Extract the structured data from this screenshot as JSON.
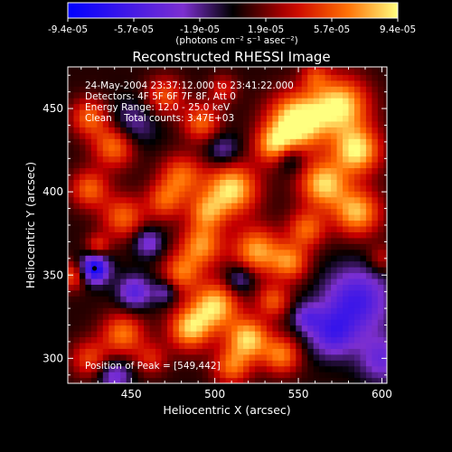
{
  "chart_data": {
    "type": "heatmap",
    "title": "Reconstructed RHESSI Image",
    "xlabel": "Heliocentric X (arcsec)",
    "ylabel": "Heliocentric Y (arcsec)",
    "xlim": [
      412,
      603
    ],
    "ylim": [
      285,
      475
    ],
    "xticks": [
      450,
      500,
      550,
      600
    ],
    "yticks": [
      300,
      350,
      400,
      450
    ],
    "annotations": [
      "24-May-2004 23:37:12.000 to 23:41:22.000",
      "Detectors: 4F 5F 6F 7F 8F, Att 0",
      "Energy Range: 12.0 - 25.0 keV",
      "Clean    Total counts: 3.47E+03"
    ],
    "peak_text": "Position of Peak = [549,442]",
    "peak": [
      549,
      442
    ],
    "min_marker": [
      428,
      354
    ],
    "colorbar": {
      "min": -9.4e-05,
      "max": 9.4e-05,
      "tick_labels": [
        "-9.4e-05",
        "-5.7e-05",
        "-1.9e-05",
        "1.9e-05",
        "5.7e-05",
        "9.4e-05"
      ],
      "unit_label": "(photons cm⁻² s⁻¹ asec⁻²)",
      "colors": [
        "#0000ff",
        "#7c2fd0",
        "#000000",
        "#c80000",
        "#ff6a00",
        "#ffff80"
      ]
    },
    "blobs": [
      [
        549,
        442,
        12,
        1.0
      ],
      [
        575,
        452,
        12,
        0.85
      ],
      [
        585,
        425,
        10,
        0.85
      ],
      [
        535,
        428,
        8,
        0.6
      ],
      [
        565,
        405,
        10,
        0.8
      ],
      [
        585,
        388,
        10,
        0.75
      ],
      [
        555,
        378,
        8,
        0.55
      ],
      [
        525,
        365,
        10,
        0.7
      ],
      [
        545,
        358,
        8,
        0.6
      ],
      [
        510,
        402,
        11,
        0.85
      ],
      [
        480,
        410,
        9,
        0.55
      ],
      [
        495,
        388,
        8,
        0.55
      ],
      [
        470,
        395,
        8,
        0.5
      ],
      [
        445,
        385,
        9,
        0.55
      ],
      [
        425,
        402,
        8,
        0.55
      ],
      [
        440,
        428,
        9,
        0.65
      ],
      [
        425,
        445,
        8,
        0.55
      ],
      [
        470,
        458,
        8,
        0.5
      ],
      [
        492,
        442,
        8,
        0.55
      ],
      [
        505,
        462,
        6,
        0.35
      ],
      [
        492,
        368,
        9,
        0.65
      ],
      [
        480,
        352,
        8,
        0.55
      ],
      [
        500,
        332,
        10,
        0.8
      ],
      [
        485,
        318,
        9,
        0.75
      ],
      [
        520,
        312,
        9,
        0.8
      ],
      [
        540,
        302,
        8,
        0.6
      ],
      [
        510,
        295,
        8,
        0.55
      ],
      [
        445,
        315,
        9,
        0.6
      ],
      [
        425,
        300,
        8,
        0.45
      ],
      [
        415,
        350,
        6,
        0.5
      ],
      [
        535,
        335,
        7,
        0.5
      ],
      [
        600,
        360,
        6,
        0.3
      ],
      [
        430,
        368,
        5,
        0.4
      ],
      [
        462,
        300,
        7,
        0.35
      ],
      [
        560,
        470,
        6,
        0.35
      ],
      [
        428,
        354,
        6,
        -0.95
      ],
      [
        452,
        340,
        7,
        -0.55
      ],
      [
        460,
        370,
        6,
        -0.45
      ],
      [
        585,
        335,
        14,
        -0.65
      ],
      [
        570,
        315,
        10,
        -0.55
      ],
      [
        450,
        440,
        10,
        -0.35
      ],
      [
        505,
        425,
        7,
        -0.35
      ],
      [
        440,
        290,
        7,
        -0.45
      ],
      [
        600,
        300,
        10,
        -0.45
      ],
      [
        545,
        420,
        6,
        -0.35
      ],
      [
        470,
        340,
        5,
        -0.35
      ],
      [
        515,
        348,
        6,
        -0.4
      ],
      [
        555,
        325,
        6,
        -0.4
      ]
    ]
  }
}
